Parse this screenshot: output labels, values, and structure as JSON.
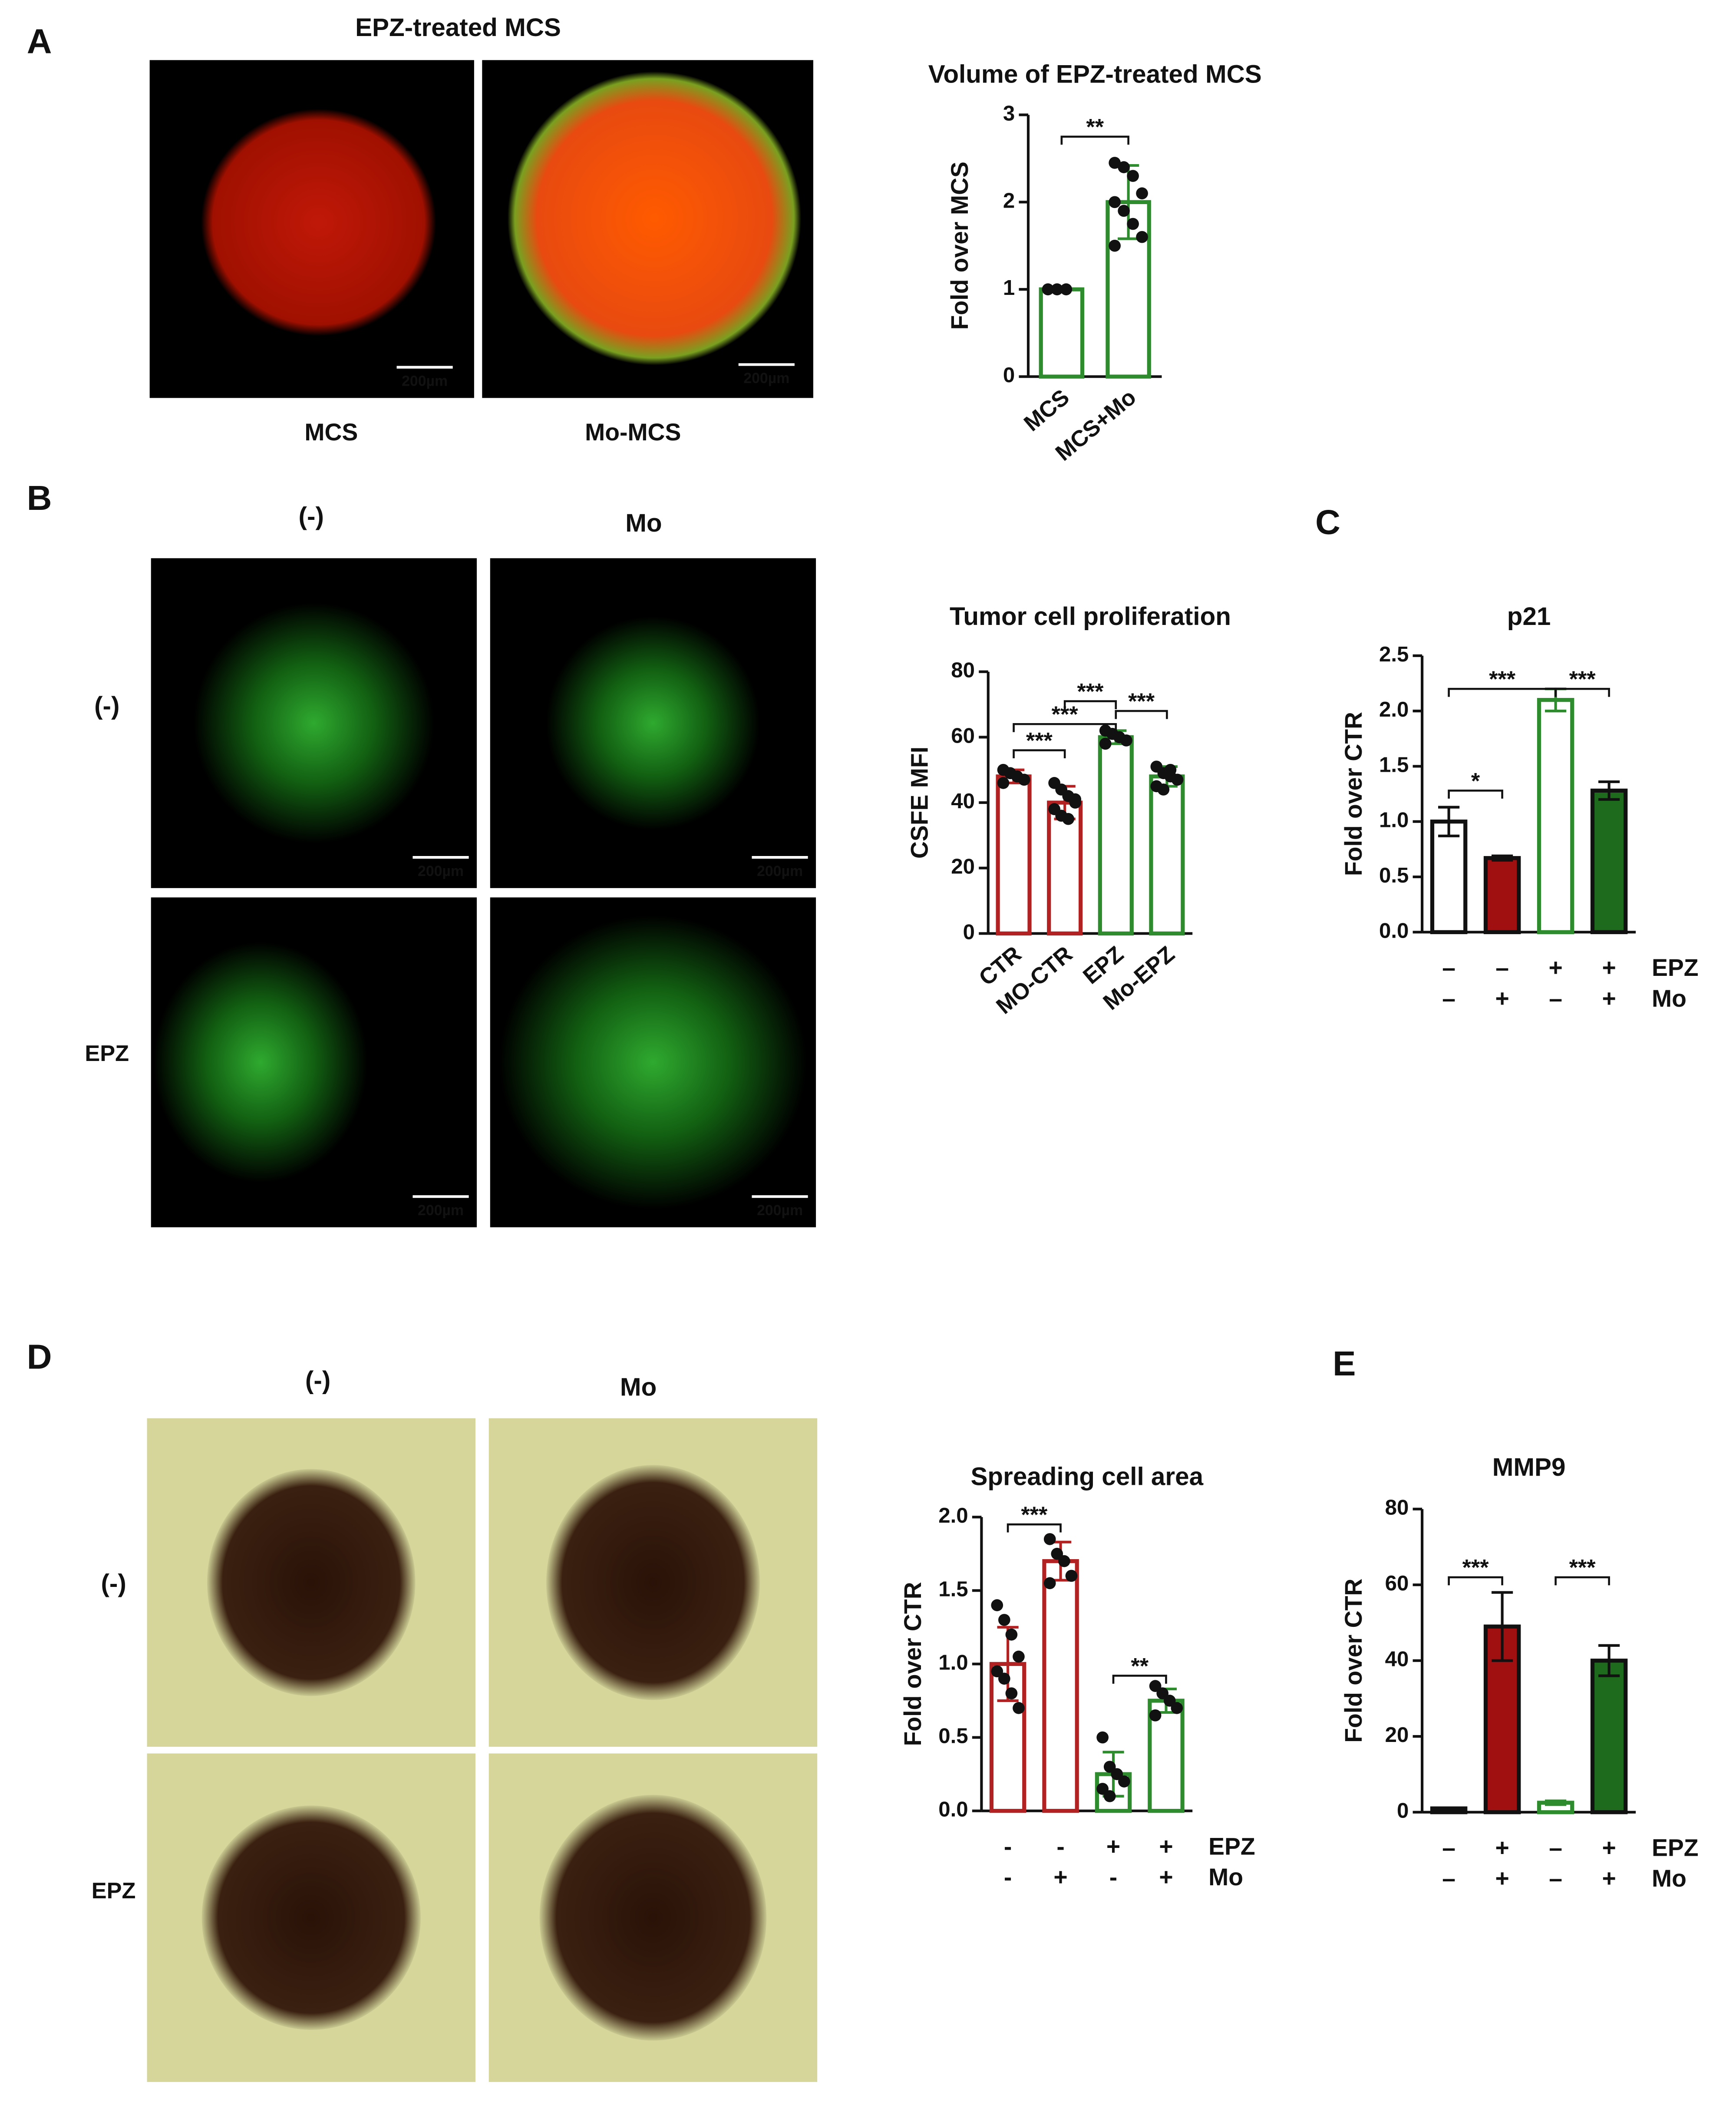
{
  "panels": [
    "A",
    "B",
    "C",
    "D",
    "E"
  ],
  "scale_bar": "200µm",
  "figure_a": {
    "title": "EPZ-treated MCS",
    "images": [
      "MCS",
      "Mo-MCS"
    ]
  },
  "figure_b": {
    "columns": [
      "(-)",
      "Mo"
    ],
    "rows": [
      "(-)",
      "EPZ"
    ]
  },
  "figure_d": {
    "columns": [
      "(-)",
      "Mo"
    ],
    "rows": [
      "(-)",
      "EPZ"
    ]
  },
  "chart_data": [
    {
      "type": "bar",
      "title": "Volume of EPZ-treated MCS",
      "ylabel": "Fold over MCS",
      "categories": [
        "MCS",
        "MCS+Mo"
      ],
      "values": [
        1,
        2.0
      ],
      "errors": [
        0,
        0.42
      ],
      "colors": [
        "#2e8b2e",
        "#2e8b2e"
      ],
      "fills": [
        "#ffffff",
        "#ffffff"
      ],
      "points": [
        [
          1,
          1,
          1
        ],
        [
          2.45,
          2.4,
          2.3,
          2.1,
          2.0,
          1.9,
          1.75,
          1.6,
          1.5
        ]
      ],
      "ylim": [
        0,
        3
      ],
      "yticks": [
        0,
        1,
        2,
        3
      ],
      "annotations": [
        "**"
      ]
    },
    {
      "type": "bar",
      "title": "Tumor cell proliferation",
      "ylabel": "CSFE MFI",
      "categories": [
        "CTR",
        "MO-CTR",
        "EPZ",
        "Mo-EPZ"
      ],
      "values": [
        48,
        40,
        60,
        48
      ],
      "errors": [
        2,
        5,
        2,
        3
      ],
      "colors": [
        "#b22222",
        "#b22222",
        "#2e8b2e",
        "#2e8b2e"
      ],
      "fills": [
        "#ffffff",
        "#ffffff",
        "#ffffff",
        "#ffffff"
      ],
      "points": [
        [
          50,
          49,
          48,
          47,
          46,
          49
        ],
        [
          46,
          44,
          42,
          40,
          38,
          36,
          35,
          41
        ],
        [
          62,
          61,
          60,
          59,
          58,
          61
        ],
        [
          51,
          49,
          48,
          47,
          45,
          44,
          50
        ]
      ],
      "ylim": [
        0,
        80
      ],
      "yticks": [
        0,
        20,
        40,
        60,
        80
      ],
      "annotations": [
        "***",
        "***",
        "***",
        "***"
      ]
    },
    {
      "type": "bar",
      "title": "p21",
      "ylabel": "Fold over CTR",
      "categories": [
        null,
        null,
        null,
        null
      ],
      "values": [
        1.0,
        0.67,
        2.1,
        1.28
      ],
      "errors": [
        0.13,
        0.02,
        0.1,
        0.08
      ],
      "colors": [
        "#111111",
        "#111111",
        "#2e8b2e",
        "#111111"
      ],
      "fills": [
        "#ffffff",
        "#a01010",
        "#ffffff",
        "#1e6b1e"
      ],
      "ylim": [
        0,
        2.5
      ],
      "yticks": [
        {
          "value": 0,
          "label": "0.0"
        },
        {
          "value": 0.5,
          "label": "0.5"
        },
        {
          "value": 1,
          "label": "1.0"
        },
        {
          "value": 1.5,
          "label": "1.5"
        },
        {
          "value": 2,
          "label": "2.0"
        },
        {
          "value": 2.5,
          "label": "2.5"
        }
      ],
      "treatments": [
        {
          "name": "EPZ",
          "signs": [
            "–",
            "–",
            "+",
            "+"
          ]
        },
        {
          "name": "Mo",
          "signs": [
            "–",
            "+",
            "–",
            "+"
          ]
        }
      ],
      "annotations": [
        "*",
        "***",
        "***"
      ]
    },
    {
      "type": "bar",
      "title": "Spreading cell area",
      "ylabel": "Fold over CTR",
      "categories": [
        null,
        null,
        null,
        null
      ],
      "values": [
        1.0,
        1.7,
        0.25,
        0.75
      ],
      "errors": [
        0.25,
        0.13,
        0.15,
        0.08
      ],
      "colors": [
        "#b22222",
        "#b22222",
        "#2e8b2e",
        "#2e8b2e"
      ],
      "fills": [
        "#ffffff",
        "#ffffff",
        "#ffffff",
        "#ffffff"
      ],
      "points": [
        [
          1.4,
          1.3,
          1.2,
          1.05,
          0.95,
          0.9,
          0.8,
          0.7
        ],
        [
          1.85,
          1.75,
          1.7,
          1.6,
          1.55
        ],
        [
          0.5,
          0.3,
          0.25,
          0.2,
          0.15,
          0.1
        ],
        [
          0.85,
          0.8,
          0.75,
          0.7,
          0.65
        ]
      ],
      "ylim": [
        0,
        2
      ],
      "yticks": [
        {
          "value": 0,
          "label": "0.0"
        },
        {
          "value": 0.5,
          "label": "0.5"
        },
        {
          "value": 1,
          "label": "1.0"
        },
        {
          "value": 1.5,
          "label": "1.5"
        },
        {
          "value": 2,
          "label": "2.0"
        }
      ],
      "treatments": [
        {
          "name": "EPZ",
          "signs": [
            "-",
            "-",
            "+",
            "+"
          ]
        },
        {
          "name": "Mo",
          "signs": [
            "-",
            "+",
            "-",
            "+"
          ]
        }
      ],
      "annotations": [
        "***",
        "**"
      ]
    },
    {
      "type": "bar",
      "title": "MMP9",
      "ylabel": "Fold over CTR",
      "categories": [
        null,
        null,
        null,
        null
      ],
      "values": [
        1,
        49,
        2.5,
        40
      ],
      "errors": [
        0,
        9,
        0.5,
        4
      ],
      "colors": [
        "#111111",
        "#111111",
        "#2e8b2e",
        "#111111"
      ],
      "fills": [
        "#ffffff",
        "#a01010",
        "#ffffff",
        "#1e6b1e"
      ],
      "ylim": [
        0,
        80
      ],
      "yticks": [
        0,
        20,
        40,
        60,
        80
      ],
      "treatments": [
        {
          "name": "EPZ",
          "signs": [
            "–",
            "+",
            "–",
            "+"
          ]
        },
        {
          "name": "Mo",
          "signs": [
            "–",
            "+",
            "–",
            "+"
          ]
        }
      ],
      "annotations": [
        "***",
        "***"
      ]
    }
  ]
}
